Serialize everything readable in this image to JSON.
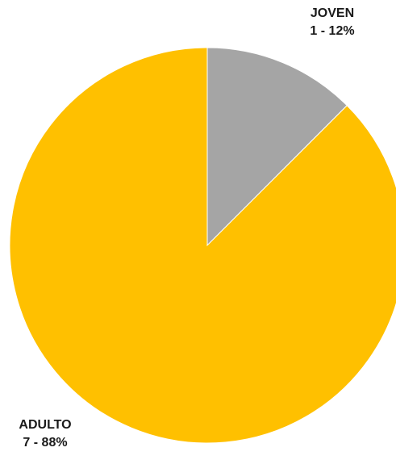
{
  "chart_data": {
    "type": "pie",
    "title": "",
    "slices": [
      {
        "label": "JOVEN",
        "value": 1,
        "percent": "12%",
        "color": "#a5a5a5",
        "data_label": "1 - 12%"
      },
      {
        "label": "ADULTO",
        "value": 7,
        "percent": "88%",
        "color": "#ffc000",
        "data_label": "7 - 88%"
      }
    ],
    "start_angle": "12 o'clock",
    "direction": "clockwise",
    "legend": "none"
  }
}
